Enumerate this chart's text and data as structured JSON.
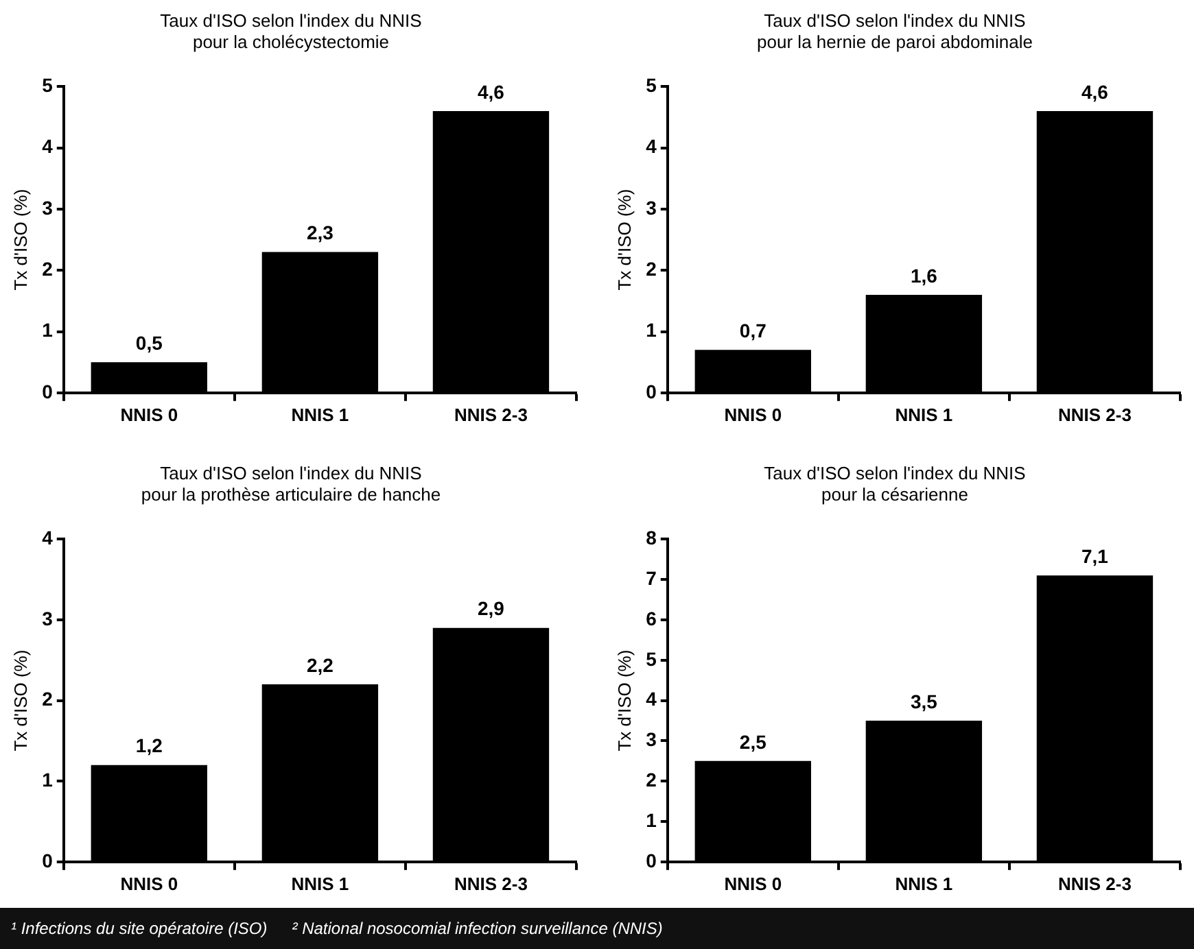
{
  "chart_data": [
    {
      "type": "bar",
      "title": "Taux d'ISO selon l'index du NNIS\npour la cholécystectomie",
      "ylabel": "Tx d'ISO (%)",
      "categories": [
        "NNIS 0",
        "NNIS 1",
        "NNIS 2-3"
      ],
      "values": [
        0.5,
        2.3,
        4.6
      ],
      "value_labels": [
        "0,5",
        "2,3",
        "4,6"
      ],
      "color": "#000000",
      "ylim": [
        0,
        5
      ],
      "yticks": [
        0,
        1,
        2,
        3,
        4,
        5
      ],
      "grid": false,
      "legend": false
    },
    {
      "type": "bar",
      "title": "Taux d'ISO selon l'index du NNIS\npour la hernie de paroi abdominale",
      "ylabel": "Tx d'ISO (%)",
      "categories": [
        "NNIS 0",
        "NNIS 1",
        "NNIS 2-3"
      ],
      "values": [
        0.7,
        1.6,
        4.6
      ],
      "value_labels": [
        "0,7",
        "1,6",
        "4,6"
      ],
      "color": "#000000",
      "ylim": [
        0,
        5
      ],
      "yticks": [
        0,
        1,
        2,
        3,
        4,
        5
      ],
      "grid": false,
      "legend": false
    },
    {
      "type": "bar",
      "title": "Taux d'ISO selon l'index du NNIS\npour la prothèse articulaire de hanche",
      "ylabel": "Tx d'ISO (%)",
      "categories": [
        "NNIS 0",
        "NNIS 1",
        "NNIS 2-3"
      ],
      "values": [
        1.2,
        2.2,
        2.9
      ],
      "value_labels": [
        "1,2",
        "2,2",
        "2,9"
      ],
      "color": "#000000",
      "ylim": [
        0,
        4
      ],
      "yticks": [
        0,
        1,
        2,
        3,
        4
      ],
      "grid": false,
      "legend": false
    },
    {
      "type": "bar",
      "title": "Taux d'ISO selon l'index du NNIS\npour la césarienne",
      "ylabel": "Tx d'ISO (%)",
      "categories": [
        "NNIS 0",
        "NNIS 1",
        "NNIS 2-3"
      ],
      "values": [
        2.5,
        3.5,
        7.1
      ],
      "value_labels": [
        "2,5",
        "3,5",
        "7,1"
      ],
      "color": "#000000",
      "ylim": [
        0,
        8
      ],
      "yticks": [
        0,
        1,
        2,
        3,
        4,
        5,
        6,
        7,
        8
      ],
      "grid": false,
      "legend": false
    },
    {
      "type": "other",
      "annotations": [
        "¹ Infections du site opératoire (ISO)",
        "² National nosocomial infection surveillance (NNIS)"
      ]
    }
  ]
}
